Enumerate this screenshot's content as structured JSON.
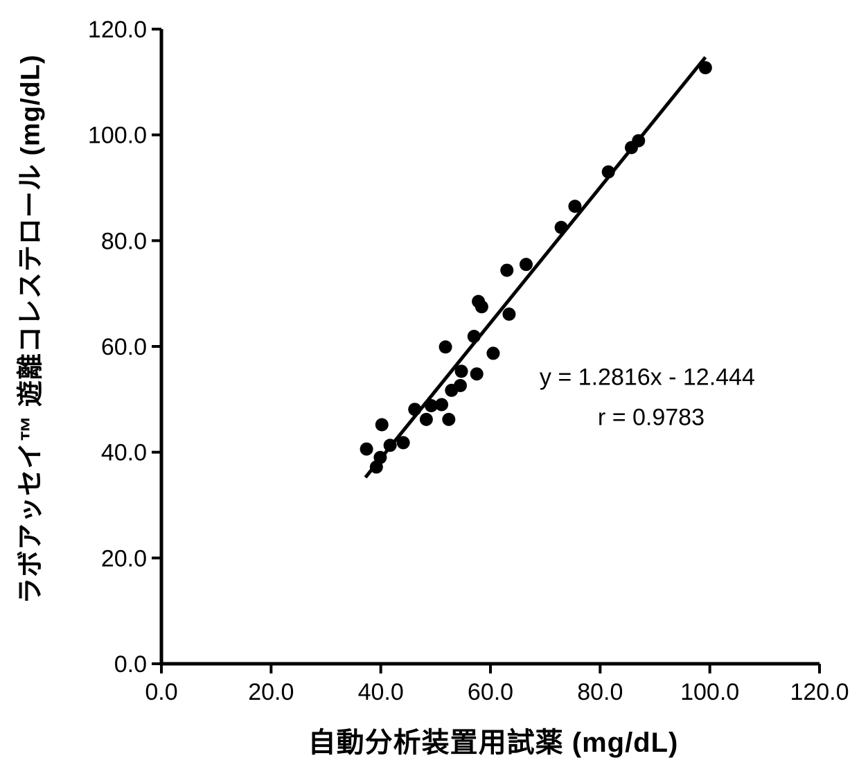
{
  "chart_data": {
    "type": "scatter",
    "title": "",
    "xlabel": "自動分析装置用試薬 (mg/dL)",
    "ylabel": "ラボアッセイ™ 遊離コレステロール (mg/dL)",
    "xlim": [
      0,
      120
    ],
    "ylim": [
      0,
      120
    ],
    "xticks": [
      0,
      20,
      40,
      60,
      80,
      100,
      120
    ],
    "yticks": [
      0,
      20,
      40,
      60,
      80,
      100,
      120
    ],
    "tick_decimals": 1,
    "grid": false,
    "legend_position": "none",
    "marker_color": "#000000",
    "trendline_color": "#000000",
    "axis_color": "#000000",
    "points": [
      [
        37.4,
        40.6
      ],
      [
        39.2,
        37.2
      ],
      [
        39.9,
        39.0
      ],
      [
        40.2,
        45.2
      ],
      [
        41.7,
        41.3
      ],
      [
        44.1,
        41.8
      ],
      [
        46.2,
        48.1
      ],
      [
        48.3,
        46.2
      ],
      [
        49.2,
        48.8
      ],
      [
        51.1,
        49.0
      ],
      [
        51.8,
        59.9
      ],
      [
        52.4,
        46.2
      ],
      [
        52.9,
        51.7
      ],
      [
        54.5,
        52.6
      ],
      [
        54.7,
        55.3
      ],
      [
        57.0,
        61.9
      ],
      [
        57.5,
        54.8
      ],
      [
        57.8,
        68.5
      ],
      [
        58.4,
        67.5
      ],
      [
        60.5,
        58.7
      ],
      [
        63.0,
        74.4
      ],
      [
        63.4,
        66.1
      ],
      [
        66.5,
        75.5
      ],
      [
        72.9,
        82.5
      ],
      [
        75.4,
        86.5
      ],
      [
        81.5,
        93.0
      ],
      [
        85.7,
        97.6
      ],
      [
        87.0,
        98.9
      ],
      [
        99.2,
        112.7
      ]
    ],
    "trendline": {
      "slope": 1.2816,
      "intercept": -12.444,
      "x_start": 37.2,
      "x_end": 99.2
    },
    "r_value": 0.9783,
    "annotations": [
      {
        "text": "y = 1.2816x - 12.444",
        "x": 88.6,
        "y": 54.1
      },
      {
        "text": "r = 0.9783",
        "x": 89.3,
        "y": 46.5
      }
    ]
  }
}
